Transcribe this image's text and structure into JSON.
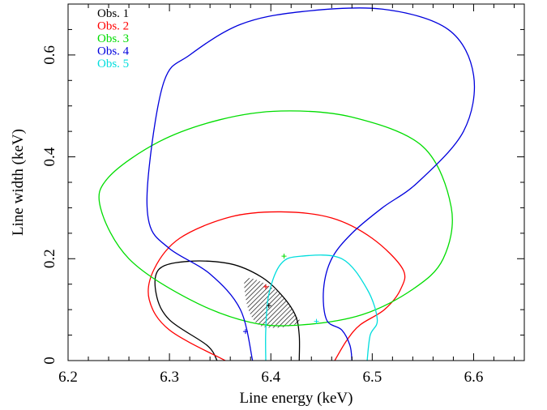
{
  "chart_data": {
    "type": "line",
    "xlabel": "Line energy (keV)",
    "ylabel": "Line width (keV)",
    "xlim": [
      6.2,
      6.65
    ],
    "ylim": [
      0,
      0.7
    ],
    "x_ticks": [
      6.2,
      6.3,
      6.4,
      6.5,
      6.6
    ],
    "x_tick_labels": [
      "6.2",
      "6.3",
      "6.4",
      "6.5",
      "6.6"
    ],
    "y_ticks": [
      0,
      0.2,
      0.4,
      0.6
    ],
    "y_tick_labels": [
      "0",
      "0.2",
      "0.4",
      "0.6"
    ],
    "legend_position": "top-left",
    "series": [
      {
        "name": "Obs. 1",
        "color": "#000000",
        "best_fit": [
          6.398,
          0.108
        ],
        "contour": [
          [
            6.347,
            0.0
          ],
          [
            6.337,
            0.03
          ],
          [
            6.3,
            0.08
          ],
          [
            6.287,
            0.13
          ],
          [
            6.29,
            0.18
          ],
          [
            6.32,
            0.195
          ],
          [
            6.36,
            0.19
          ],
          [
            6.39,
            0.165
          ],
          [
            6.41,
            0.13
          ],
          [
            6.424,
            0.09
          ],
          [
            6.428,
            0.05
          ],
          [
            6.428,
            0.0
          ]
        ]
      },
      {
        "name": "Obs. 2",
        "color": "#ff0000",
        "best_fit": [
          6.395,
          0.145
        ],
        "contour": [
          [
            6.355,
            0.0
          ],
          [
            6.3,
            0.06
          ],
          [
            6.28,
            0.12
          ],
          [
            6.285,
            0.18
          ],
          [
            6.31,
            0.24
          ],
          [
            6.36,
            0.282
          ],
          [
            6.41,
            0.292
          ],
          [
            6.46,
            0.28
          ],
          [
            6.5,
            0.24
          ],
          [
            6.53,
            0.18
          ],
          [
            6.528,
            0.14
          ],
          [
            6.512,
            0.1
          ],
          [
            6.488,
            0.07
          ],
          [
            6.475,
            0.04
          ],
          [
            6.463,
            0.0
          ]
        ]
      },
      {
        "name": "Obs. 3",
        "color": "#00dd00",
        "best_fit": [
          6.413,
          0.205
        ],
        "contour": [
          [
            6.38,
            0.075
          ],
          [
            6.32,
            0.12
          ],
          [
            6.26,
            0.2
          ],
          [
            6.232,
            0.3
          ],
          [
            6.24,
            0.36
          ],
          [
            6.29,
            0.43
          ],
          [
            6.35,
            0.473
          ],
          [
            6.41,
            0.49
          ],
          [
            6.48,
            0.478
          ],
          [
            6.55,
            0.42
          ],
          [
            6.578,
            0.3
          ],
          [
            6.57,
            0.2
          ],
          [
            6.54,
            0.14
          ],
          [
            6.49,
            0.09
          ],
          [
            6.43,
            0.07
          ],
          [
            6.38,
            0.075
          ]
        ]
      },
      {
        "name": "Obs. 4",
        "color": "#0000dd",
        "best_fit": [
          6.375,
          0.057
        ],
        "contour": [
          [
            6.382,
            0.0
          ],
          [
            6.37,
            0.1
          ],
          [
            6.34,
            0.17
          ],
          [
            6.3,
            0.22
          ],
          [
            6.28,
            0.27
          ],
          [
            6.28,
            0.38
          ],
          [
            6.295,
            0.55
          ],
          [
            6.32,
            0.6
          ],
          [
            6.37,
            0.66
          ],
          [
            6.43,
            0.685
          ],
          [
            6.51,
            0.69
          ],
          [
            6.575,
            0.65
          ],
          [
            6.6,
            0.56
          ],
          [
            6.59,
            0.45
          ],
          [
            6.545,
            0.35
          ],
          [
            6.51,
            0.3
          ],
          [
            6.48,
            0.25
          ],
          [
            6.46,
            0.2
          ],
          [
            6.452,
            0.14
          ],
          [
            6.455,
            0.08
          ],
          [
            6.47,
            0.06
          ],
          [
            6.478,
            0.03
          ],
          [
            6.48,
            0.0
          ]
        ]
      },
      {
        "name": "Obs. 5",
        "color": "#00dddd",
        "best_fit": [
          6.445,
          0.077
        ],
        "contour": [
          [
            6.395,
            0.0
          ],
          [
            6.395,
            0.06
          ],
          [
            6.398,
            0.13
          ],
          [
            6.41,
            0.19
          ],
          [
            6.43,
            0.205
          ],
          [
            6.47,
            0.2
          ],
          [
            6.495,
            0.14
          ],
          [
            6.505,
            0.08
          ],
          [
            6.498,
            0.05
          ],
          [
            6.495,
            0.0
          ]
        ]
      }
    ],
    "shaded_region": {
      "color": "#000000",
      "polygon": [
        [
          6.375,
          0.16
        ],
        [
          6.39,
          0.155
        ],
        [
          6.41,
          0.13
        ],
        [
          6.424,
          0.09
        ],
        [
          6.428,
          0.075
        ],
        [
          6.41,
          0.065
        ],
        [
          6.39,
          0.068
        ],
        [
          6.38,
          0.09
        ],
        [
          6.375,
          0.125
        ]
      ]
    }
  }
}
